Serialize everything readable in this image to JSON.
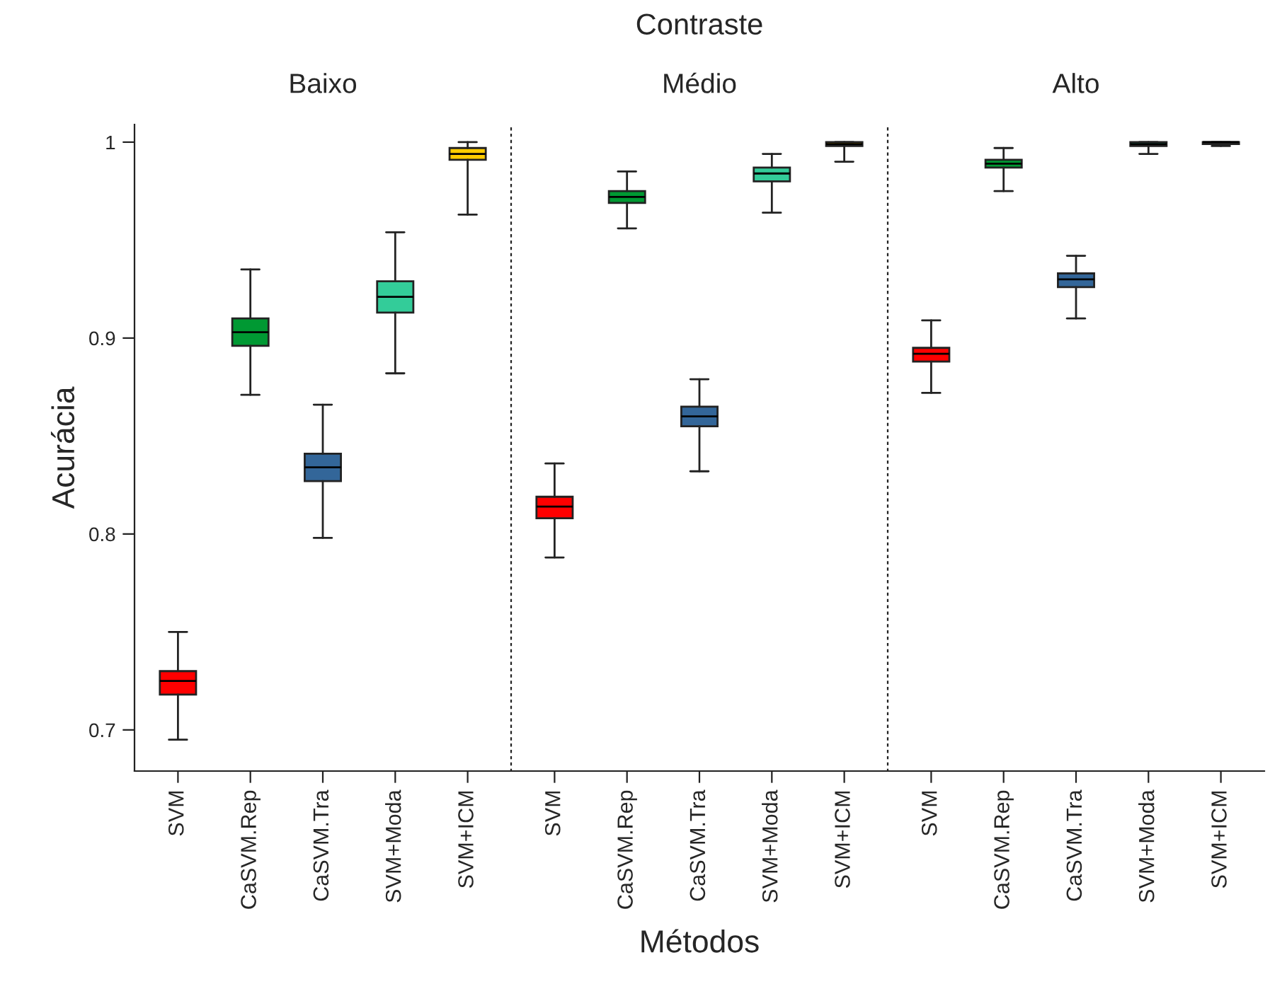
{
  "chart_data": [
    {
      "type": "box",
      "subtitle": "Baixo",
      "ylabel": "Acurácia",
      "categories": [
        "SVM",
        "CaSVM.Rep",
        "CaSVM.Tra",
        "SVM+Moda",
        "SVM+ICM"
      ],
      "colors": [
        "#ff0000",
        "#009933",
        "#336699",
        "#33cc99",
        "#ffcc00"
      ],
      "ylim": [
        0.679,
        1.009
      ],
      "yticks": [
        0.7,
        0.8,
        0.9,
        1
      ],
      "boxes": [
        {
          "low": 0.695,
          "q1": 0.718,
          "median": 0.725,
          "q3": 0.73,
          "high": 0.75
        },
        {
          "low": 0.871,
          "q1": 0.896,
          "median": 0.903,
          "q3": 0.91,
          "high": 0.935
        },
        {
          "low": 0.798,
          "q1": 0.827,
          "median": 0.834,
          "q3": 0.841,
          "high": 0.866
        },
        {
          "low": 0.882,
          "q1": 0.913,
          "median": 0.921,
          "q3": 0.929,
          "high": 0.954
        },
        {
          "low": 0.963,
          "q1": 0.991,
          "median": 0.994,
          "q3": 0.997,
          "high": 1.0
        }
      ]
    },
    {
      "type": "box",
      "title": "Contraste",
      "subtitle": "Médio",
      "xlabel": "Métodos",
      "categories": [
        "SVM",
        "CaSVM.Rep",
        "CaSVM.Tra",
        "SVM+Moda",
        "SVM+ICM"
      ],
      "colors": [
        "#ff0000",
        "#009933",
        "#336699",
        "#33cc99",
        "#ffcc00"
      ],
      "ylim": [
        0.679,
        1.009
      ],
      "yticks": [
        0.7,
        0.8,
        0.9,
        1
      ],
      "tick_labels": "x",
      "boxes": [
        {
          "low": 0.788,
          "q1": 0.808,
          "median": 0.814,
          "q3": 0.819,
          "high": 0.836
        },
        {
          "low": 0.956,
          "q1": 0.969,
          "median": 0.972,
          "q3": 0.975,
          "high": 0.985
        },
        {
          "low": 0.832,
          "q1": 0.855,
          "median": 0.86,
          "q3": 0.865,
          "high": 0.879
        },
        {
          "low": 0.964,
          "q1": 0.98,
          "median": 0.984,
          "q3": 0.987,
          "high": 0.994
        },
        {
          "low": 0.99,
          "q1": 0.998,
          "median": 0.999,
          "q3": 1.0,
          "high": 1.0
        }
      ]
    },
    {
      "type": "box",
      "subtitle": "Alto",
      "categories": [
        "SVM",
        "CaSVM.Rep",
        "CaSVM.Tra",
        "SVM+Moda",
        "SVM+ICM"
      ],
      "colors": [
        "#ff0000",
        "#009933",
        "#336699",
        "#33cc99",
        "#ffcc00"
      ],
      "ylim": [
        0.679,
        1.009
      ],
      "yticks": [
        0.7,
        0.8,
        0.9,
        1
      ],
      "tick_labels": "x",
      "boxes": [
        {
          "low": 0.872,
          "q1": 0.888,
          "median": 0.892,
          "q3": 0.895,
          "high": 0.909
        },
        {
          "low": 0.975,
          "q1": 0.987,
          "median": 0.989,
          "q3": 0.991,
          "high": 0.997
        },
        {
          "low": 0.91,
          "q1": 0.926,
          "median": 0.93,
          "q3": 0.933,
          "high": 0.942
        },
        {
          "low": 0.994,
          "q1": 0.998,
          "median": 0.999,
          "q3": 1.0,
          "high": 1.0
        },
        {
          "low": 0.998,
          "q1": 0.999,
          "median": 1.0,
          "q3": 1.0,
          "high": 1.0
        }
      ]
    }
  ]
}
